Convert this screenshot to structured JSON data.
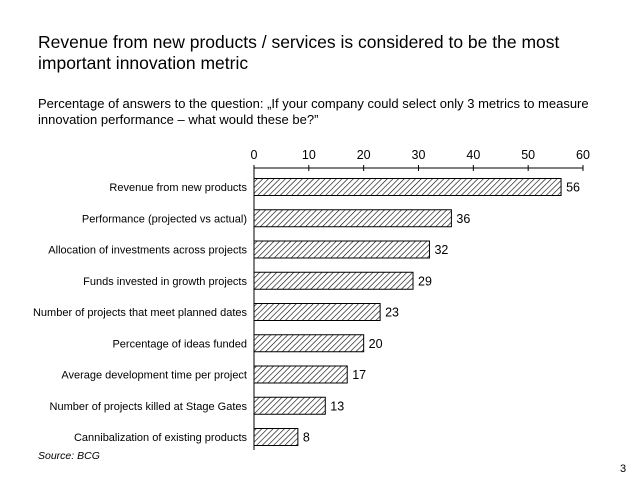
{
  "slide": {
    "title": "Revenue from new products / services is considered to be the most important innovation metric",
    "subtitle": "Percentage of answers to the question: „If your company could select only 3 metrics to measure innovation performance – what would these be?”",
    "source": "Source: BCG",
    "page_number": "3"
  },
  "chart_data": {
    "type": "bar",
    "orientation": "horizontal",
    "categories": [
      "Revenue from new products",
      "Performance (projected vs actual)",
      "Allocation of investments across projects",
      "Funds invested in growth projects",
      "Number of projects that meet planned dates",
      "Percentage of ideas funded",
      "Average development time per project",
      "Number of projects killed at Stage Gates",
      "Cannibalization of existing products"
    ],
    "values": [
      56,
      36,
      32,
      29,
      23,
      20,
      17,
      13,
      8
    ],
    "xlim": [
      0,
      60
    ],
    "ticks": [
      0,
      10,
      20,
      30,
      40,
      50,
      60
    ],
    "axis_position": "top",
    "grid": false,
    "legend": "none",
    "bar_fill": "diagonal-hatch",
    "colors": {
      "bar_stroke": "#000000",
      "hatch": "#000000",
      "background": "#ffffff"
    }
  }
}
